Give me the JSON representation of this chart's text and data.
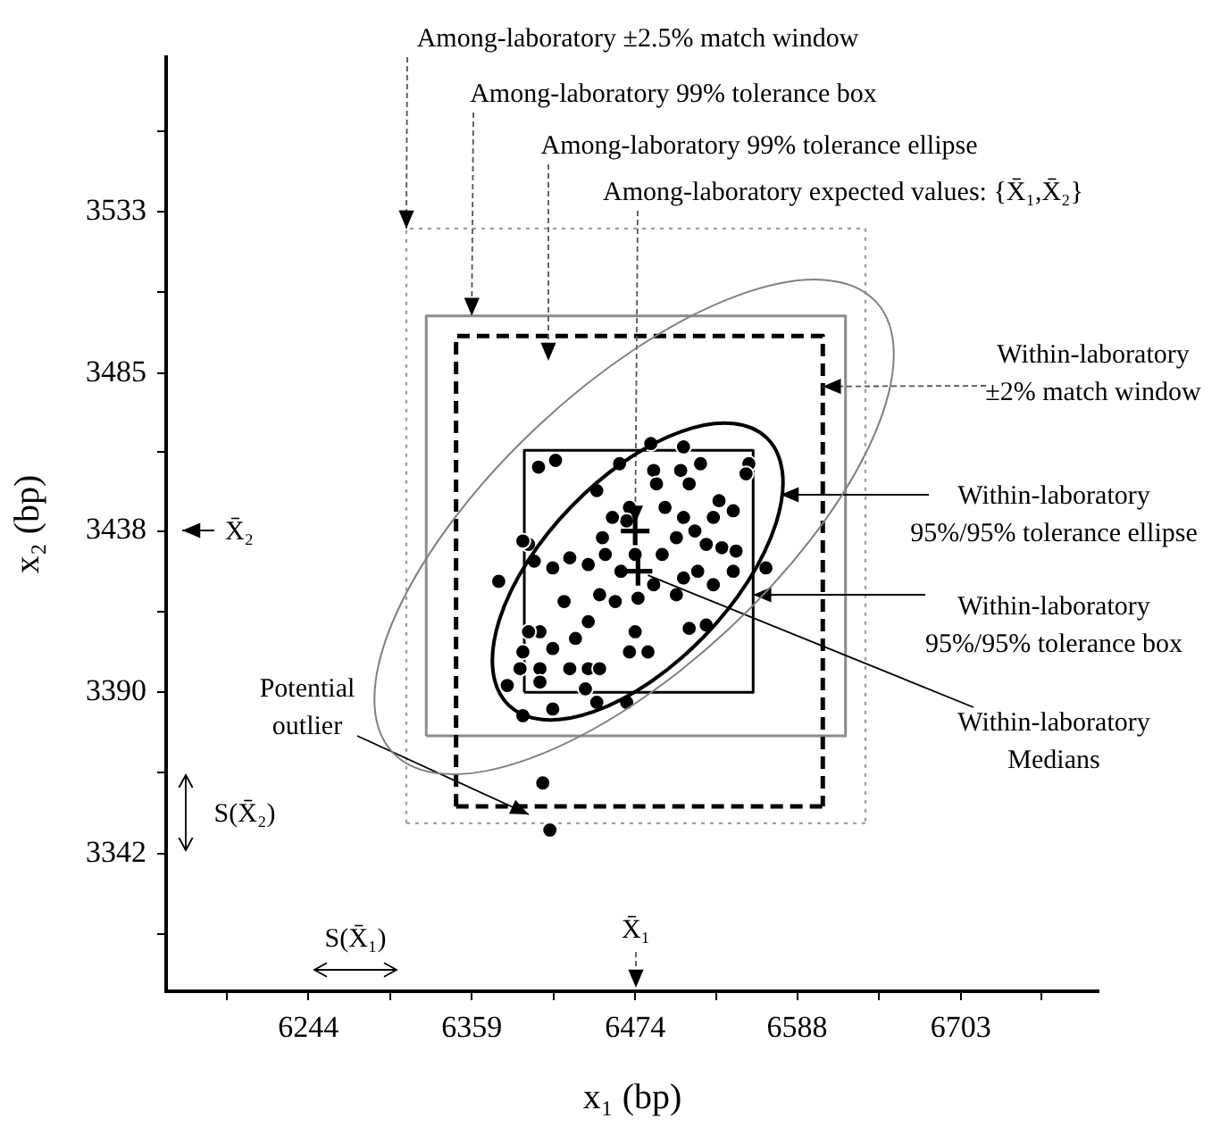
{
  "chart_data": {
    "type": "scatter",
    "xlabel": "x₁ (bp)",
    "ylabel": "x₂ (bp)",
    "xlim": [
      6144,
      6800
    ],
    "xticks": [
      {
        "value": 6186.5,
        "label": null
      },
      6244,
      {
        "value": 6301.5,
        "label": null
      },
      6359,
      {
        "value": 6416.5,
        "label": null
      },
      6474,
      {
        "value": 6531,
        "label": null
      },
      6588,
      {
        "value": 6645.5,
        "label": null
      },
      6703,
      {
        "value": 6760,
        "label": null
      }
    ],
    "ylim": [
      3301,
      3579
    ],
    "yticks": [
      {
        "value": 3318,
        "label": null
      },
      3342,
      {
        "value": 3366,
        "label": null
      },
      3390,
      {
        "value": 3414,
        "label": null
      },
      3438,
      {
        "value": 3461.5,
        "label": null
      },
      3485,
      {
        "value": 3509,
        "label": null
      },
      3533,
      {
        "value": 3557,
        "label": null
      }
    ],
    "grid": false,
    "legend": false,
    "marker": "circle",
    "series": [
      {
        "type": "line",
        "color": "#a0a0a0",
        "line_style": "dotted",
        "marker": "none",
        "x": [
          6313,
          6313,
          6636,
          6636
        ],
        "values": [
          3351,
          3528,
          3528,
          3351
        ]
      },
      {
        "type": "line",
        "color": "#a0a0a0",
        "line_style": "dotted",
        "marker": "none",
        "x": [
          6313,
          6636
        ],
        "values": [
          3351,
          3351
        ]
      },
      {
        "type": "line",
        "color": "#8c8c8c",
        "line_style": "solid",
        "marker": "none",
        "x": [
          6327,
          6327,
          6622,
          6622
        ],
        "values": [
          3377,
          3502,
          3502,
          3377
        ]
      },
      {
        "type": "line",
        "color": "#8c8c8c",
        "line_style": "solid",
        "marker": "none",
        "x": [
          6327,
          6622
        ],
        "values": [
          3377,
          3377
        ]
      },
      {
        "type": "line",
        "color": "#000000",
        "line_style": "dashed",
        "marker": "none",
        "x": [
          6348,
          6348,
          6606,
          6606
        ],
        "values": [
          3356,
          3496,
          3496,
          3356
        ]
      },
      {
        "type": "line",
        "color": "#000000",
        "line_style": "dashed",
        "marker": "none",
        "x": [
          6348,
          6606
        ],
        "values": [
          3356,
          3356
        ]
      },
      {
        "type": "line",
        "color": "#000000",
        "line_style": "solid",
        "marker": "none",
        "x": [
          6396,
          6396,
          6557,
          6557
        ],
        "values": [
          3390,
          3462,
          3462,
          3390
        ]
      },
      {
        "type": "line",
        "color": "#000000",
        "line_style": "solid",
        "marker": "none",
        "x": [
          6396,
          6557
        ],
        "values": [
          3390,
          3390
        ]
      },
      {
        "color": "#000000",
        "x": [
          6406,
          6418,
          6463,
          6485,
          6508,
          6447,
          6554,
          6552,
          6533,
          6543,
          6520,
          6506,
          6487,
          6489,
          6512,
          6399,
          6395,
          6403,
          6416,
          6428,
          6441,
          6451,
          6470,
          6468,
          6458,
          6453,
          6464,
          6474,
          6493,
          6503,
          6516,
          6524,
          6535,
          6545,
          6543,
          6529,
          6518,
          6508,
          6503,
          6512,
          6524,
          6566,
          6378,
          6424,
          6441,
          6432,
          6449,
          6460,
          6476,
          6487,
          6474,
          6470,
          6483,
          6407,
          6416,
          6395,
          6399,
          6407,
          6393,
          6428,
          6441,
          6449,
          6439,
          6407,
          6384,
          6395,
          6416,
          6447,
          6468,
          6495,
          6508,
          6529,
          6409,
          6414
        ],
        "values": [
          3457,
          3459,
          3458,
          3464,
          3463,
          3450,
          3458,
          3455,
          3447,
          3444,
          3458,
          3456,
          3456,
          3452,
          3452,
          3434,
          3435,
          3429,
          3427,
          3430,
          3428,
          3436,
          3445,
          3441,
          3442,
          3431,
          3426,
          3431,
          3431,
          3436,
          3438,
          3434,
          3433,
          3432,
          3426,
          3422,
          3426,
          3424,
          3419,
          3409,
          3410,
          3427,
          3423,
          3417,
          3411,
          3406,
          3419,
          3417,
          3418,
          3422,
          3408,
          3402,
          3402,
          3408,
          3403,
          3402,
          3408,
          3397,
          3397,
          3397,
          3397,
          3397,
          3391,
          3393,
          3392,
          3383,
          3385,
          3387,
          3387,
          3445,
          3442,
          3442,
          3363,
          3349
        ]
      },
      {
        "color": "#000000",
        "marker": "cross",
        "x": [
          6474
        ],
        "values": [
          3438
        ]
      },
      {
        "color": "#000000",
        "marker": "cross",
        "x": [
          6476
        ],
        "values": [
          3426
        ]
      }
    ],
    "annotations": [
      {
        "text": "Among-laboratory ±2.5% match window",
        "x": 6313,
        "y": 3528
      },
      {
        "text": "Among-laboratory 99% tolerance box",
        "x": 6359,
        "y": 3502
      },
      "Among-laboratory 99% tolerance ellipse",
      {
        "text": "Among-laboratory expected values: {X̄₁,X̄₂}",
        "x": 6474,
        "y": 3438
      },
      {
        "text": "Within-laboratory\n±2% match window",
        "x": 6606,
        "y": 3481
      },
      "Within-laboratory\n95%/95% tolerance ellipse",
      {
        "text": "Within-laboratory\n95%/95% tolerance box",
        "x": 6557,
        "y": 3419
      },
      {
        "text": "Within-laboratory\nMedians",
        "x": 6476,
        "y": 3426
      },
      "Potential\noutlier",
      "X̄₂",
      "X̄₁",
      "S(X̄₁)",
      "S(X̄₂)"
    ]
  }
}
